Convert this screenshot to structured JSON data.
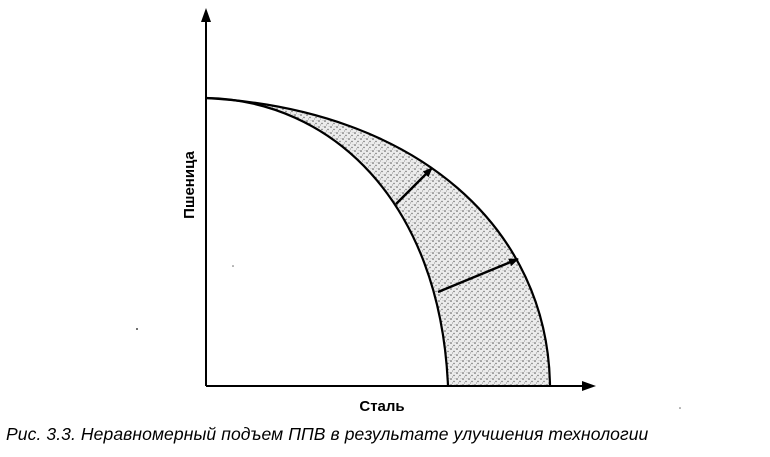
{
  "figure": {
    "y_axis_label": "Пшеница",
    "x_axis_label": "Сталь",
    "caption": "Рис. 3.3. Неравномерный подъем ППВ в результате улучшения технологии",
    "colors": {
      "ink": "#000000",
      "shading": "#c8c8c8",
      "background": "#ffffff"
    }
  }
}
